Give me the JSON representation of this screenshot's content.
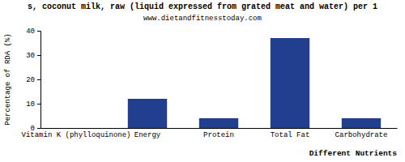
{
  "chart_data": {
    "type": "bar",
    "title": "s, coconut milk, raw (liquid expressed from grated meat and water) per 1",
    "subtitle": "www.dietandfitnesstoday.com",
    "x_label": "Different Nutrients",
    "y_label": "Percentage of RDA (%)",
    "categories": [
      "Vitamin K (phylloquinone)",
      "Energy",
      "Protein",
      "Total Fat",
      "Carbohydrate"
    ],
    "values": [
      0,
      12,
      4,
      37,
      4
    ],
    "color": "#223f8f",
    "ylim": [
      0,
      40
    ],
    "yticks": [
      0,
      10,
      20,
      30,
      40
    ],
    "grid": false
  }
}
